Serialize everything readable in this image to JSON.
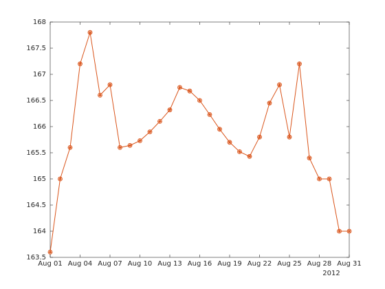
{
  "chart_data": {
    "type": "line",
    "x": [
      "2012-08-01",
      "2012-08-02",
      "2012-08-03",
      "2012-08-04",
      "2012-08-05",
      "2012-08-06",
      "2012-08-07",
      "2012-08-08",
      "2012-08-09",
      "2012-08-10",
      "2012-08-11",
      "2012-08-12",
      "2012-08-13",
      "2012-08-14",
      "2012-08-15",
      "2012-08-16",
      "2012-08-17",
      "2012-08-18",
      "2012-08-19",
      "2012-08-20",
      "2012-08-21",
      "2012-08-22",
      "2012-08-23",
      "2012-08-24",
      "2012-08-25",
      "2012-08-26",
      "2012-08-27",
      "2012-08-28",
      "2012-08-29",
      "2012-08-30",
      "2012-08-31"
    ],
    "series": [
      {
        "color": "#d95319",
        "values": [
          163.6,
          165.0,
          165.6,
          167.2,
          167.8,
          166.6,
          166.8,
          165.6,
          165.64,
          165.73,
          165.9,
          166.1,
          166.32,
          166.75,
          166.68,
          166.5,
          166.23,
          165.95,
          165.7,
          165.52,
          165.43,
          165.8,
          166.45,
          166.8,
          165.8,
          167.2,
          165.4,
          165.0,
          165.0,
          164.0,
          164.0
        ]
      }
    ],
    "xlim": [
      "2012-08-01",
      "2012-08-31"
    ],
    "xticks": [
      {
        "value": "2012-08-01",
        "label": "Aug 01"
      },
      {
        "value": "2012-08-04",
        "label": "Aug 04"
      },
      {
        "value": "2012-08-07",
        "label": "Aug 07"
      },
      {
        "value": "2012-08-10",
        "label": "Aug 10"
      },
      {
        "value": "2012-08-13",
        "label": "Aug 13"
      },
      {
        "value": "2012-08-16",
        "label": "Aug 16"
      },
      {
        "value": "2012-08-19",
        "label": "Aug 19"
      },
      {
        "value": "2012-08-22",
        "label": "Aug 22"
      },
      {
        "value": "2012-08-25",
        "label": "Aug 25"
      },
      {
        "value": "2012-08-28",
        "label": "Aug 28"
      },
      {
        "value": "2012-08-31",
        "label": "Aug 31"
      }
    ],
    "x_year_label": "2012",
    "ylim": [
      163.5,
      168
    ],
    "yticks": [
      163.5,
      164,
      164.5,
      165,
      165.5,
      166,
      166.5,
      167,
      167.5,
      168
    ],
    "grid": false
  }
}
